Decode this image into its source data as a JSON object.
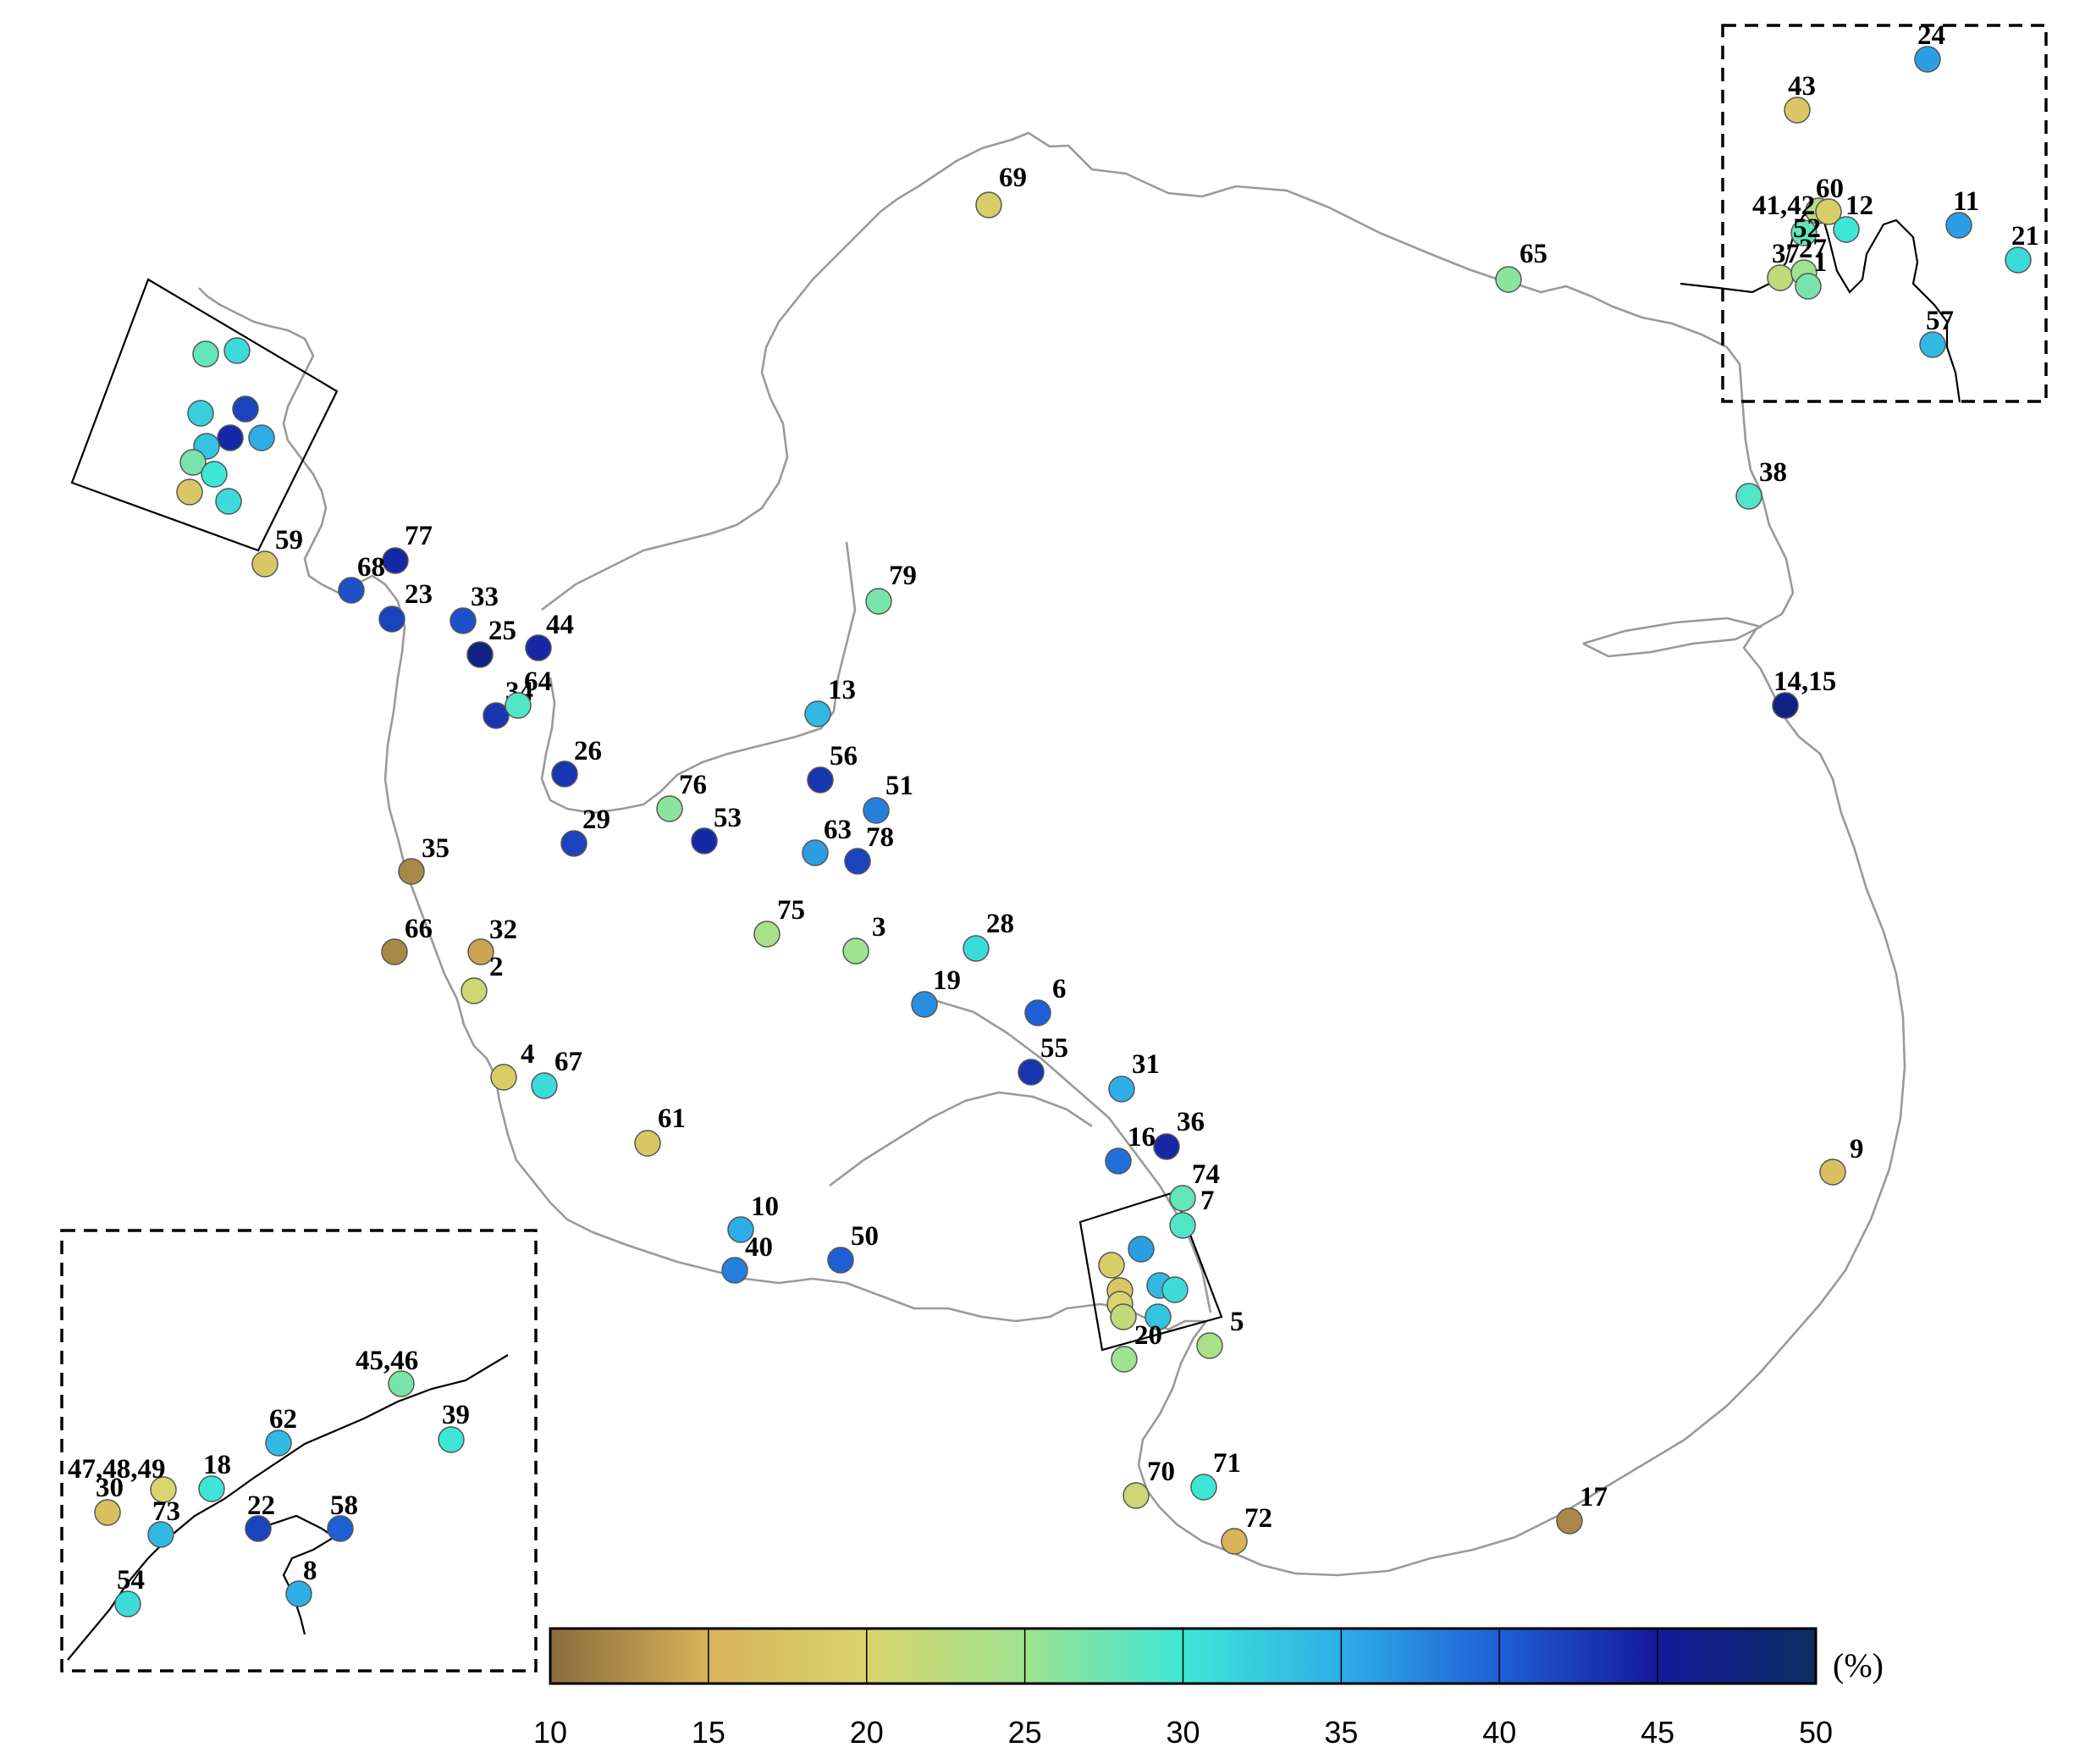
{
  "colorbar": {
    "unit": "(%)",
    "min": 10,
    "max": 50,
    "ticks": [
      "10",
      "15",
      "20",
      "25",
      "30",
      "35",
      "40",
      "45",
      "50"
    ],
    "stops": [
      "#8b6b3b",
      "#d8b35a",
      "#d9d46c",
      "#9ee38f",
      "#3ee6d6",
      "#2eaee8",
      "#1f5fd6",
      "#151a9a",
      "#0c2e62"
    ]
  },
  "stations": [
    {
      "label": "69",
      "v": 19
    },
    {
      "label": "65",
      "v": 26
    },
    {
      "label": "79",
      "v": 27
    },
    {
      "label": "77",
      "v": 44
    },
    {
      "label": "68",
      "v": 41
    },
    {
      "label": "23",
      "v": 42
    },
    {
      "label": "33",
      "v": 41
    },
    {
      "label": "25",
      "v": 47
    },
    {
      "label": "44",
      "v": 44
    },
    {
      "label": "34",
      "v": 43
    },
    {
      "label": "64",
      "v": 29
    },
    {
      "label": "59",
      "v": 18
    },
    {
      "label": "13",
      "v": 34
    },
    {
      "label": "26",
      "v": 43
    },
    {
      "label": "56",
      "v": 43
    },
    {
      "label": "51",
      "v": 38
    },
    {
      "label": "76",
      "v": 26
    },
    {
      "label": "53",
      "v": 44
    },
    {
      "label": "29",
      "v": 42
    },
    {
      "label": "63",
      "v": 36
    },
    {
      "label": "78",
      "v": 42
    },
    {
      "label": "35",
      "v": 12
    },
    {
      "label": "75",
      "v": 24
    },
    {
      "label": "3",
      "v": 25
    },
    {
      "label": "28",
      "v": 31
    },
    {
      "label": "66",
      "v": 12
    },
    {
      "label": "32",
      "v": 14
    },
    {
      "label": "2",
      "v": 21
    },
    {
      "label": "19",
      "v": 37
    },
    {
      "label": "6",
      "v": 40
    },
    {
      "label": "55",
      "v": 43
    },
    {
      "label": "4",
      "v": 19
    },
    {
      "label": "67",
      "v": 31
    },
    {
      "label": "61",
      "v": 18
    },
    {
      "label": "31",
      "v": 35
    },
    {
      "label": "36",
      "v": 44
    },
    {
      "label": "16",
      "v": 39
    },
    {
      "label": "74",
      "v": 28
    },
    {
      "label": "7",
      "v": 29
    },
    {
      "label": "10",
      "v": 35
    },
    {
      "label": "40",
      "v": 38
    },
    {
      "label": "50",
      "v": 40
    },
    {
      "label": "5",
      "v": 24
    },
    {
      "label": "20",
      "v": 25
    },
    {
      "label": "70",
      "v": 21
    },
    {
      "label": "71",
      "v": 30
    },
    {
      "label": "72",
      "v": 15
    },
    {
      "label": "17",
      "v": 12
    },
    {
      "label": "9",
      "v": 17
    },
    {
      "label": "38",
      "v": 29
    },
    {
      "label": "14,15",
      "v": 47
    },
    {
      "label": "24",
      "v": 36
    },
    {
      "label": "43",
      "v": 18
    },
    {
      "label": "41,42",
      "v": 23
    },
    {
      "label": "60",
      "v": 19
    },
    {
      "label": "12",
      "v": 30
    },
    {
      "label": "11",
      "v": 36
    },
    {
      "label": "21",
      "v": 31
    },
    {
      "label": "52",
      "v": 28
    },
    {
      "label": "37",
      "v": 22
    },
    {
      "label": "27",
      "v": 25
    },
    {
      "label": "1",
      "v": 27
    },
    {
      "label": "57",
      "v": 34
    },
    {
      "label": "47,48,49",
      "v": 20
    },
    {
      "label": "30",
      "v": 17
    },
    {
      "label": "18",
      "v": 30
    },
    {
      "label": "73",
      "v": 34
    },
    {
      "label": "45,46",
      "v": 27
    },
    {
      "label": "39",
      "v": 30
    },
    {
      "label": "62",
      "v": 34
    },
    {
      "label": "22",
      "v": 42
    },
    {
      "label": "58",
      "v": 40
    },
    {
      "label": "8",
      "v": 35
    },
    {
      "label": "54",
      "v": 31
    }
  ]
}
